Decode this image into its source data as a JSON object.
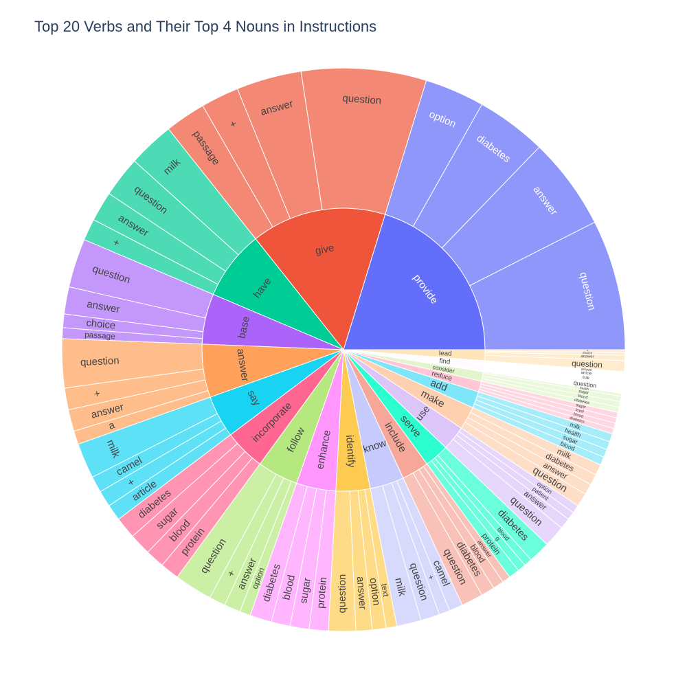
{
  "chart_data": {
    "type": "sunburst",
    "title": "Top 20 Verbs and Their Top 4 Nouns in Instructions",
    "verbs": [
      {
        "name": "provide",
        "color": "#636efa",
        "light": "#8f97fb",
        "label_color": "#ffffff",
        "children": [
          {
            "name": "question",
            "value": 48
          },
          {
            "name": "answer",
            "value": 34
          },
          {
            "name": "diabetes",
            "value": 26
          },
          {
            "name": "option",
            "value": 22
          }
        ]
      },
      {
        "name": "give",
        "color": "#ef553b",
        "light": "#f38874",
        "label_color": "#444444",
        "children": [
          {
            "name": "question",
            "value": 46
          },
          {
            "name": "answer",
            "value": 24
          },
          {
            "name": "+",
            "value": 14
          },
          {
            "name": "passage",
            "value": 15
          }
        ]
      },
      {
        "name": "have",
        "color": "#00cc96",
        "light": "#4ddbb6",
        "label_color": "#444444",
        "children": [
          {
            "name": "milk",
            "value": 17
          },
          {
            "name": "question",
            "value": 15
          },
          {
            "name": "answer",
            "value": 11
          },
          {
            "name": "+",
            "value": 8
          }
        ]
      },
      {
        "name": "base",
        "color": "#ab63fa",
        "light": "#c497fb",
        "label_color": "#444444",
        "children": [
          {
            "name": "question",
            "value": 18
          },
          {
            "name": "answer",
            "value": 10
          },
          {
            "name": "choice",
            "value": 5
          },
          {
            "name": "passage",
            "value": 4
          }
        ]
      },
      {
        "name": "answer",
        "color": "#ffa15a",
        "light": "#ffbd8c",
        "label_color": "#444444",
        "children": [
          {
            "name": "question",
            "value": 18
          },
          {
            "name": "+",
            "value": 8
          },
          {
            "name": "answer",
            "value": 8
          },
          {
            "name": "a",
            "value": 5
          }
        ]
      },
      {
        "name": "say",
        "color": "#19d3f3",
        "light": "#5ee0f7",
        "label_color": "#444444",
        "children": [
          {
            "name": "milk",
            "value": 13
          },
          {
            "name": "camel",
            "value": 6
          },
          {
            "name": "+",
            "value": 6
          },
          {
            "name": "article",
            "value": 6
          }
        ]
      },
      {
        "name": "incorporate",
        "color": "#ff6692",
        "light": "#ff94b3",
        "label_color": "#444444",
        "children": [
          {
            "name": "diabetes",
            "value": 8
          },
          {
            "name": "sugar",
            "value": 8
          },
          {
            "name": "blood",
            "value": 7
          },
          {
            "name": "protein",
            "value": 7
          }
        ]
      },
      {
        "name": "follow",
        "color": "#b6e880",
        "light": "#ccefa6",
        "label_color": "#444444",
        "children": [
          {
            "name": "question",
            "value": 14
          },
          {
            "name": "+",
            "value": 6
          },
          {
            "name": "answer",
            "value": 6
          },
          {
            "name": "option",
            "value": 4
          }
        ]
      },
      {
        "name": "enhance",
        "color": "#ff97ff",
        "light": "#ffb6ff",
        "label_color": "#444444",
        "children": [
          {
            "name": "diabetes",
            "value": 8
          },
          {
            "name": "blood",
            "value": 7
          },
          {
            "name": "sugar",
            "value": 7
          },
          {
            "name": "protein",
            "value": 7
          }
        ]
      },
      {
        "name": "identify",
        "color": "#fecb52",
        "light": "#fedb86",
        "label_color": "#444444",
        "children": [
          {
            "name": "question",
            "value": 10
          },
          {
            "name": "answer",
            "value": 6
          },
          {
            "name": "option",
            "value": 5
          },
          {
            "name": "text",
            "value": 4
          }
        ]
      },
      {
        "name": "know",
        "color": "#c6cafd",
        "light": "#d8dafd",
        "label_color": "#444444",
        "children": [
          {
            "name": "milk",
            "value": 9
          },
          {
            "name": "question",
            "value": 7
          },
          {
            "name": "+",
            "value": 4
          },
          {
            "name": "camel",
            "value": 5
          }
        ]
      },
      {
        "name": "include",
        "color": "#f7a799",
        "light": "#f9c2b8",
        "label_color": "#444444",
        "children": [
          {
            "name": "question",
            "value": 8
          },
          {
            "name": "diabetes",
            "value": 5
          },
          {
            "name": "blood",
            "value": 4
          },
          {
            "name": "answer",
            "value": 3
          }
        ]
      },
      {
        "name": "serve",
        "color": "#2cfecf",
        "light": "#6bfedd",
        "label_color": "#444444",
        "children": [
          {
            "name": "protein",
            "value": 4
          },
          {
            "name": "g",
            "value": 3
          },
          {
            "name": "blood",
            "value": 3
          },
          {
            "name": "diabetes",
            "value": 8
          }
        ]
      },
      {
        "name": "use",
        "color": "#dcc5f9",
        "light": "#e7d6fb",
        "label_color": "#444444",
        "children": [
          {
            "name": "question",
            "value": 8
          },
          {
            "name": "answer",
            "value": 4
          },
          {
            "name": "patient",
            "value": 3
          },
          {
            "name": "option",
            "value": 3
          }
        ]
      },
      {
        "name": "make",
        "color": "#ffd0b0",
        "light": "#ffdec8",
        "label_color": "#444444",
        "children": [
          {
            "name": "question",
            "value": 5
          },
          {
            "name": "answer",
            "value": 4
          },
          {
            "name": "diabetes",
            "value": 4
          },
          {
            "name": "milk",
            "value": 4
          }
        ]
      },
      {
        "name": "add",
        "color": "#7fe5f8",
        "light": "#a5edfa",
        "label_color": "#444444",
        "children": [
          {
            "name": "blood",
            "value": 3
          },
          {
            "name": "sugar",
            "value": 3
          },
          {
            "name": "health",
            "value": 3
          },
          {
            "name": "milk",
            "value": 3
          }
        ]
      },
      {
        "name": "reduce",
        "color": "#ffc6d5",
        "light": "#ffd7e2",
        "label_color": "#444444",
        "children": [
          {
            "name": "diabetes",
            "value": 2
          },
          {
            "name": "blood",
            "value": 2
          },
          {
            "name": "level",
            "value": 2
          },
          {
            "name": "sugar",
            "value": 2
          }
        ]
      },
      {
        "name": "consider",
        "color": "#e3f5cc",
        "light": "#ebf8db",
        "label_color": "#444444",
        "children": [
          {
            "name": "diabetes",
            "value": 2
          },
          {
            "name": "blood",
            "value": 2
          },
          {
            "name": "sugar",
            "value": 2
          },
          {
            "name": "health",
            "value": 1
          }
        ]
      },
      {
        "name": "find",
        "color": "#fffbff",
        "light": "#ffffff",
        "label_color": "#444444",
        "children": [
          {
            "name": "question",
            "value": 3
          },
          {
            "name": "milk",
            "value": 2
          },
          {
            "name": "article",
            "value": 2
          },
          {
            "name": "answer",
            "value": 1
          }
        ]
      },
      {
        "name": "lead",
        "color": "#ffe4b8",
        "light": "#ffecce",
        "label_color": "#444444",
        "children": [
          {
            "name": "question",
            "value": 4
          },
          {
            "name": "answer",
            "value": 2
          },
          {
            "name": "choice",
            "value": 1
          },
          {
            "name": "+",
            "value": 1
          }
        ]
      }
    ]
  }
}
